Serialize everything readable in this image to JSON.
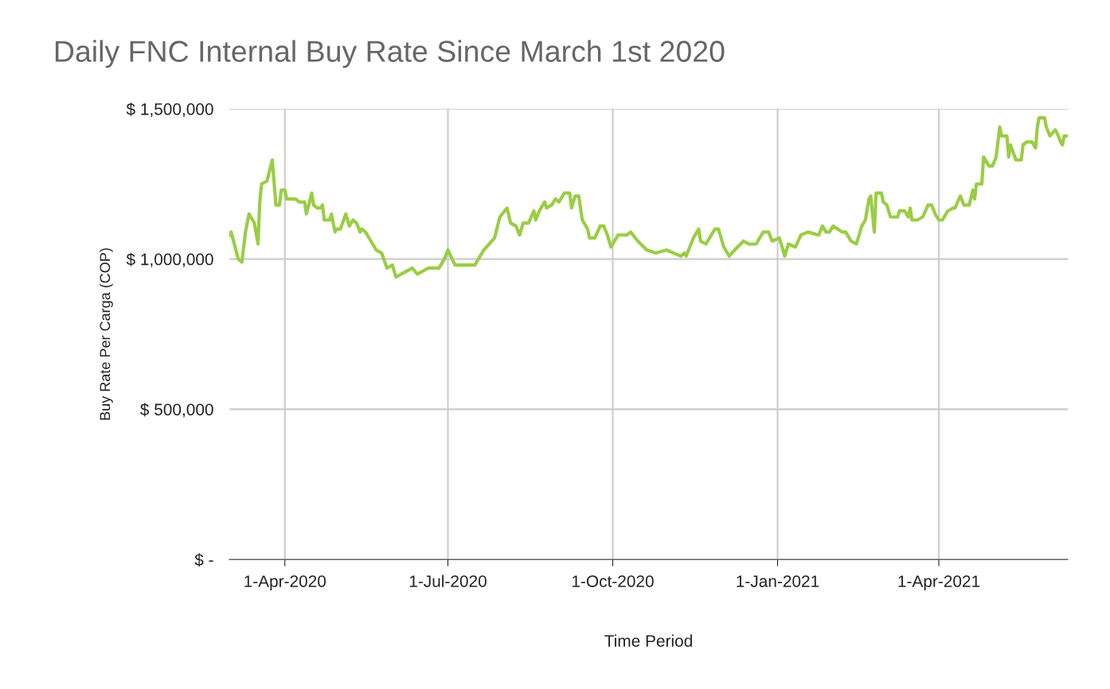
{
  "chart_data": {
    "type": "line",
    "title": "Daily FNC Internal Buy Rate Since March 1st 2020",
    "xlabel": "Time Period",
    "ylabel": "Buy Rate Per Carga (COP)",
    "x": [
      "2020-03-01",
      "2020-03-02",
      "2020-03-06",
      "2020-03-08",
      "2020-03-10",
      "2020-03-12",
      "2020-03-14",
      "2020-03-15",
      "2020-03-17",
      "2020-03-18",
      "2020-03-19",
      "2020-03-22",
      "2020-03-25",
      "2020-03-27",
      "2020-03-29",
      "2020-03-30",
      "2020-04-01",
      "2020-04-02",
      "2020-04-07",
      "2020-04-09",
      "2020-04-12",
      "2020-04-13",
      "2020-04-16",
      "2020-04-17",
      "2020-04-19",
      "2020-04-21",
      "2020-04-22",
      "2020-04-23",
      "2020-04-26",
      "2020-04-27",
      "2020-04-29",
      "2020-04-30",
      "2020-05-02",
      "2020-05-05",
      "2020-05-07",
      "2020-05-09",
      "2020-05-11",
      "2020-05-13",
      "2020-05-14",
      "2020-05-16",
      "2020-05-17",
      "2020-05-20",
      "2020-05-22",
      "2020-05-25",
      "2020-05-28",
      "2020-05-31",
      "2020-06-02",
      "2020-06-11",
      "2020-06-14",
      "2020-06-20",
      "2020-06-26",
      "2020-06-29",
      "2020-07-01",
      "2020-07-05",
      "2020-07-16",
      "2020-07-21",
      "2020-07-24",
      "2020-07-27",
      "2020-07-30",
      "2020-08-03",
      "2020-08-05",
      "2020-08-08",
      "2020-08-10",
      "2020-08-12",
      "2020-08-15",
      "2020-08-18",
      "2020-08-19",
      "2020-08-21",
      "2020-08-24",
      "2020-08-25",
      "2020-08-28",
      "2020-08-30",
      "2020-09-01",
      "2020-09-04",
      "2020-09-07",
      "2020-09-08",
      "2020-09-10",
      "2020-09-12",
      "2020-09-14",
      "2020-09-17",
      "2020-09-18",
      "2020-09-21",
      "2020-09-24",
      "2020-09-26",
      "2020-09-28",
      "2020-09-30",
      "2020-10-04",
      "2020-10-09",
      "2020-10-11",
      "2020-10-15",
      "2020-10-20",
      "2020-10-25",
      "2020-10-31",
      "2020-11-04",
      "2020-11-08",
      "2020-11-10",
      "2020-11-11",
      "2020-11-15",
      "2020-11-18",
      "2020-11-19",
      "2020-11-22",
      "2020-11-27",
      "2020-11-29",
      "2020-12-02",
      "2020-12-05",
      "2020-12-08",
      "2020-12-13",
      "2020-12-16",
      "2020-12-20",
      "2020-12-24",
      "2020-12-27",
      "2020-12-29",
      "2021-01-02",
      "2021-01-05",
      "2021-01-07",
      "2021-01-11",
      "2021-01-14",
      "2021-01-18",
      "2021-01-24",
      "2021-01-26",
      "2021-01-28",
      "2021-01-30",
      "2021-02-01",
      "2021-02-06",
      "2021-02-08",
      "2021-02-11",
      "2021-02-14",
      "2021-02-17",
      "2021-02-19",
      "2021-02-21",
      "2021-02-22",
      "2021-02-24",
      "2021-02-25",
      "2021-02-28",
      "2021-03-01",
      "2021-03-03",
      "2021-03-05",
      "2021-03-09",
      "2021-03-10",
      "2021-03-13",
      "2021-03-15",
      "2021-03-16",
      "2021-03-17",
      "2021-03-20",
      "2021-03-23",
      "2021-03-26",
      "2021-03-28",
      "2021-03-30",
      "2021-04-01",
      "2021-04-03",
      "2021-04-06",
      "2021-04-09",
      "2021-04-10",
      "2021-04-13",
      "2021-04-15",
      "2021-04-18",
      "2021-04-20",
      "2021-04-21",
      "2021-04-22",
      "2021-04-25",
      "2021-04-26",
      "2021-04-29",
      "2021-05-01",
      "2021-05-03",
      "2021-05-05",
      "2021-05-06",
      "2021-05-09",
      "2021-05-10",
      "2021-05-11",
      "2021-05-14",
      "2021-05-17",
      "2021-05-18",
      "2021-05-20",
      "2021-05-23",
      "2021-05-25",
      "2021-05-26",
      "2021-05-27",
      "2021-05-30",
      "2021-05-31",
      "2021-06-02",
      "2021-06-05",
      "2021-06-06",
      "2021-06-08",
      "2021-06-09",
      "2021-06-10",
      "2021-06-12"
    ],
    "series": [
      {
        "color": "#9acd45",
        "values": [
          1080000,
          1090000,
          1000000,
          990000,
          1090000,
          1150000,
          1130000,
          1120000,
          1050000,
          1190000,
          1250000,
          1260000,
          1330000,
          1180000,
          1180000,
          1230000,
          1230000,
          1200000,
          1200000,
          1190000,
          1190000,
          1150000,
          1220000,
          1180000,
          1170000,
          1170000,
          1180000,
          1130000,
          1130000,
          1150000,
          1090000,
          1100000,
          1100000,
          1150000,
          1110000,
          1130000,
          1120000,
          1090000,
          1100000,
          1090000,
          1080000,
          1050000,
          1030000,
          1020000,
          970000,
          980000,
          940000,
          970000,
          950000,
          970000,
          970000,
          1000000,
          1030000,
          980000,
          980000,
          1030000,
          1050000,
          1070000,
          1140000,
          1170000,
          1120000,
          1110000,
          1080000,
          1120000,
          1120000,
          1160000,
          1130000,
          1160000,
          1190000,
          1170000,
          1180000,
          1200000,
          1190000,
          1220000,
          1220000,
          1170000,
          1210000,
          1210000,
          1130000,
          1100000,
          1070000,
          1070000,
          1110000,
          1110000,
          1080000,
          1040000,
          1080000,
          1080000,
          1090000,
          1060000,
          1030000,
          1020000,
          1030000,
          1020000,
          1010000,
          1020000,
          1010000,
          1070000,
          1100000,
          1060000,
          1050000,
          1100000,
          1100000,
          1040000,
          1010000,
          1030000,
          1060000,
          1050000,
          1050000,
          1090000,
          1090000,
          1060000,
          1070000,
          1010000,
          1050000,
          1040000,
          1080000,
          1090000,
          1080000,
          1110000,
          1090000,
          1090000,
          1110000,
          1090000,
          1090000,
          1060000,
          1050000,
          1110000,
          1130000,
          1200000,
          1210000,
          1090000,
          1220000,
          1220000,
          1190000,
          1180000,
          1140000,
          1140000,
          1160000,
          1160000,
          1140000,
          1170000,
          1130000,
          1130000,
          1140000,
          1180000,
          1180000,
          1150000,
          1130000,
          1130000,
          1160000,
          1170000,
          1170000,
          1210000,
          1180000,
          1180000,
          1230000,
          1200000,
          1250000,
          1250000,
          1340000,
          1310000,
          1310000,
          1340000,
          1440000,
          1410000,
          1410000,
          1340000,
          1380000,
          1330000,
          1330000,
          1380000,
          1390000,
          1390000,
          1370000,
          1440000,
          1470000,
          1470000,
          1440000,
          1410000,
          1430000,
          1420000,
          1390000,
          1380000,
          1410000,
          1410000
        ]
      }
    ],
    "xlim": [
      "2020-03-01",
      "2021-06-12"
    ],
    "xticks": [
      {
        "value": "2020-04-01",
        "label": "1-Apr-2020"
      },
      {
        "value": "2020-07-01",
        "label": "1-Jul-2020"
      },
      {
        "value": "2020-10-01",
        "label": "1-Oct-2020"
      },
      {
        "value": "2021-01-01",
        "label": "1-Jan-2021"
      },
      {
        "value": "2021-04-01",
        "label": "1-Apr-2021"
      }
    ],
    "ylim": [
      0,
      1500000
    ],
    "yticks": [
      {
        "value": 0,
        "label": "$ -"
      },
      {
        "value": 500000,
        "label": "$ 500,000"
      },
      {
        "value": 1000000,
        "label": "$ 1,000,000"
      },
      {
        "value": 1500000,
        "label": "$ 1,500,000"
      }
    ],
    "grid": true,
    "marker": "none",
    "line_style": "solid"
  }
}
